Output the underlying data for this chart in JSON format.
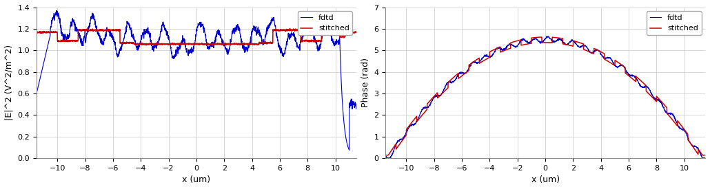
{
  "x_range": [
    -11.5,
    11.5
  ],
  "n_points": 2000,
  "left_ylabel": "|E|^2 (V^2/m^2)",
  "right_ylabel": "Phase (rad)",
  "xlabel": "x (um)",
  "legend_labels": [
    "fdtd",
    "stitched"
  ],
  "fdtd_color": "#0000cc",
  "stitched_color": "#cc0000",
  "left_ylim": [
    0,
    1.4
  ],
  "right_ylim": [
    0,
    7
  ],
  "left_yticks": [
    0,
    0.2,
    0.4,
    0.6,
    0.8,
    1.0,
    1.2,
    1.4
  ],
  "right_yticks": [
    0,
    1,
    2,
    3,
    4,
    5,
    6,
    7
  ],
  "xticks": [
    -10,
    -8,
    -6,
    -4,
    -2,
    0,
    2,
    4,
    6,
    8,
    10
  ],
  "background_color": "#ffffff",
  "grid_color": "#d0d0d0"
}
